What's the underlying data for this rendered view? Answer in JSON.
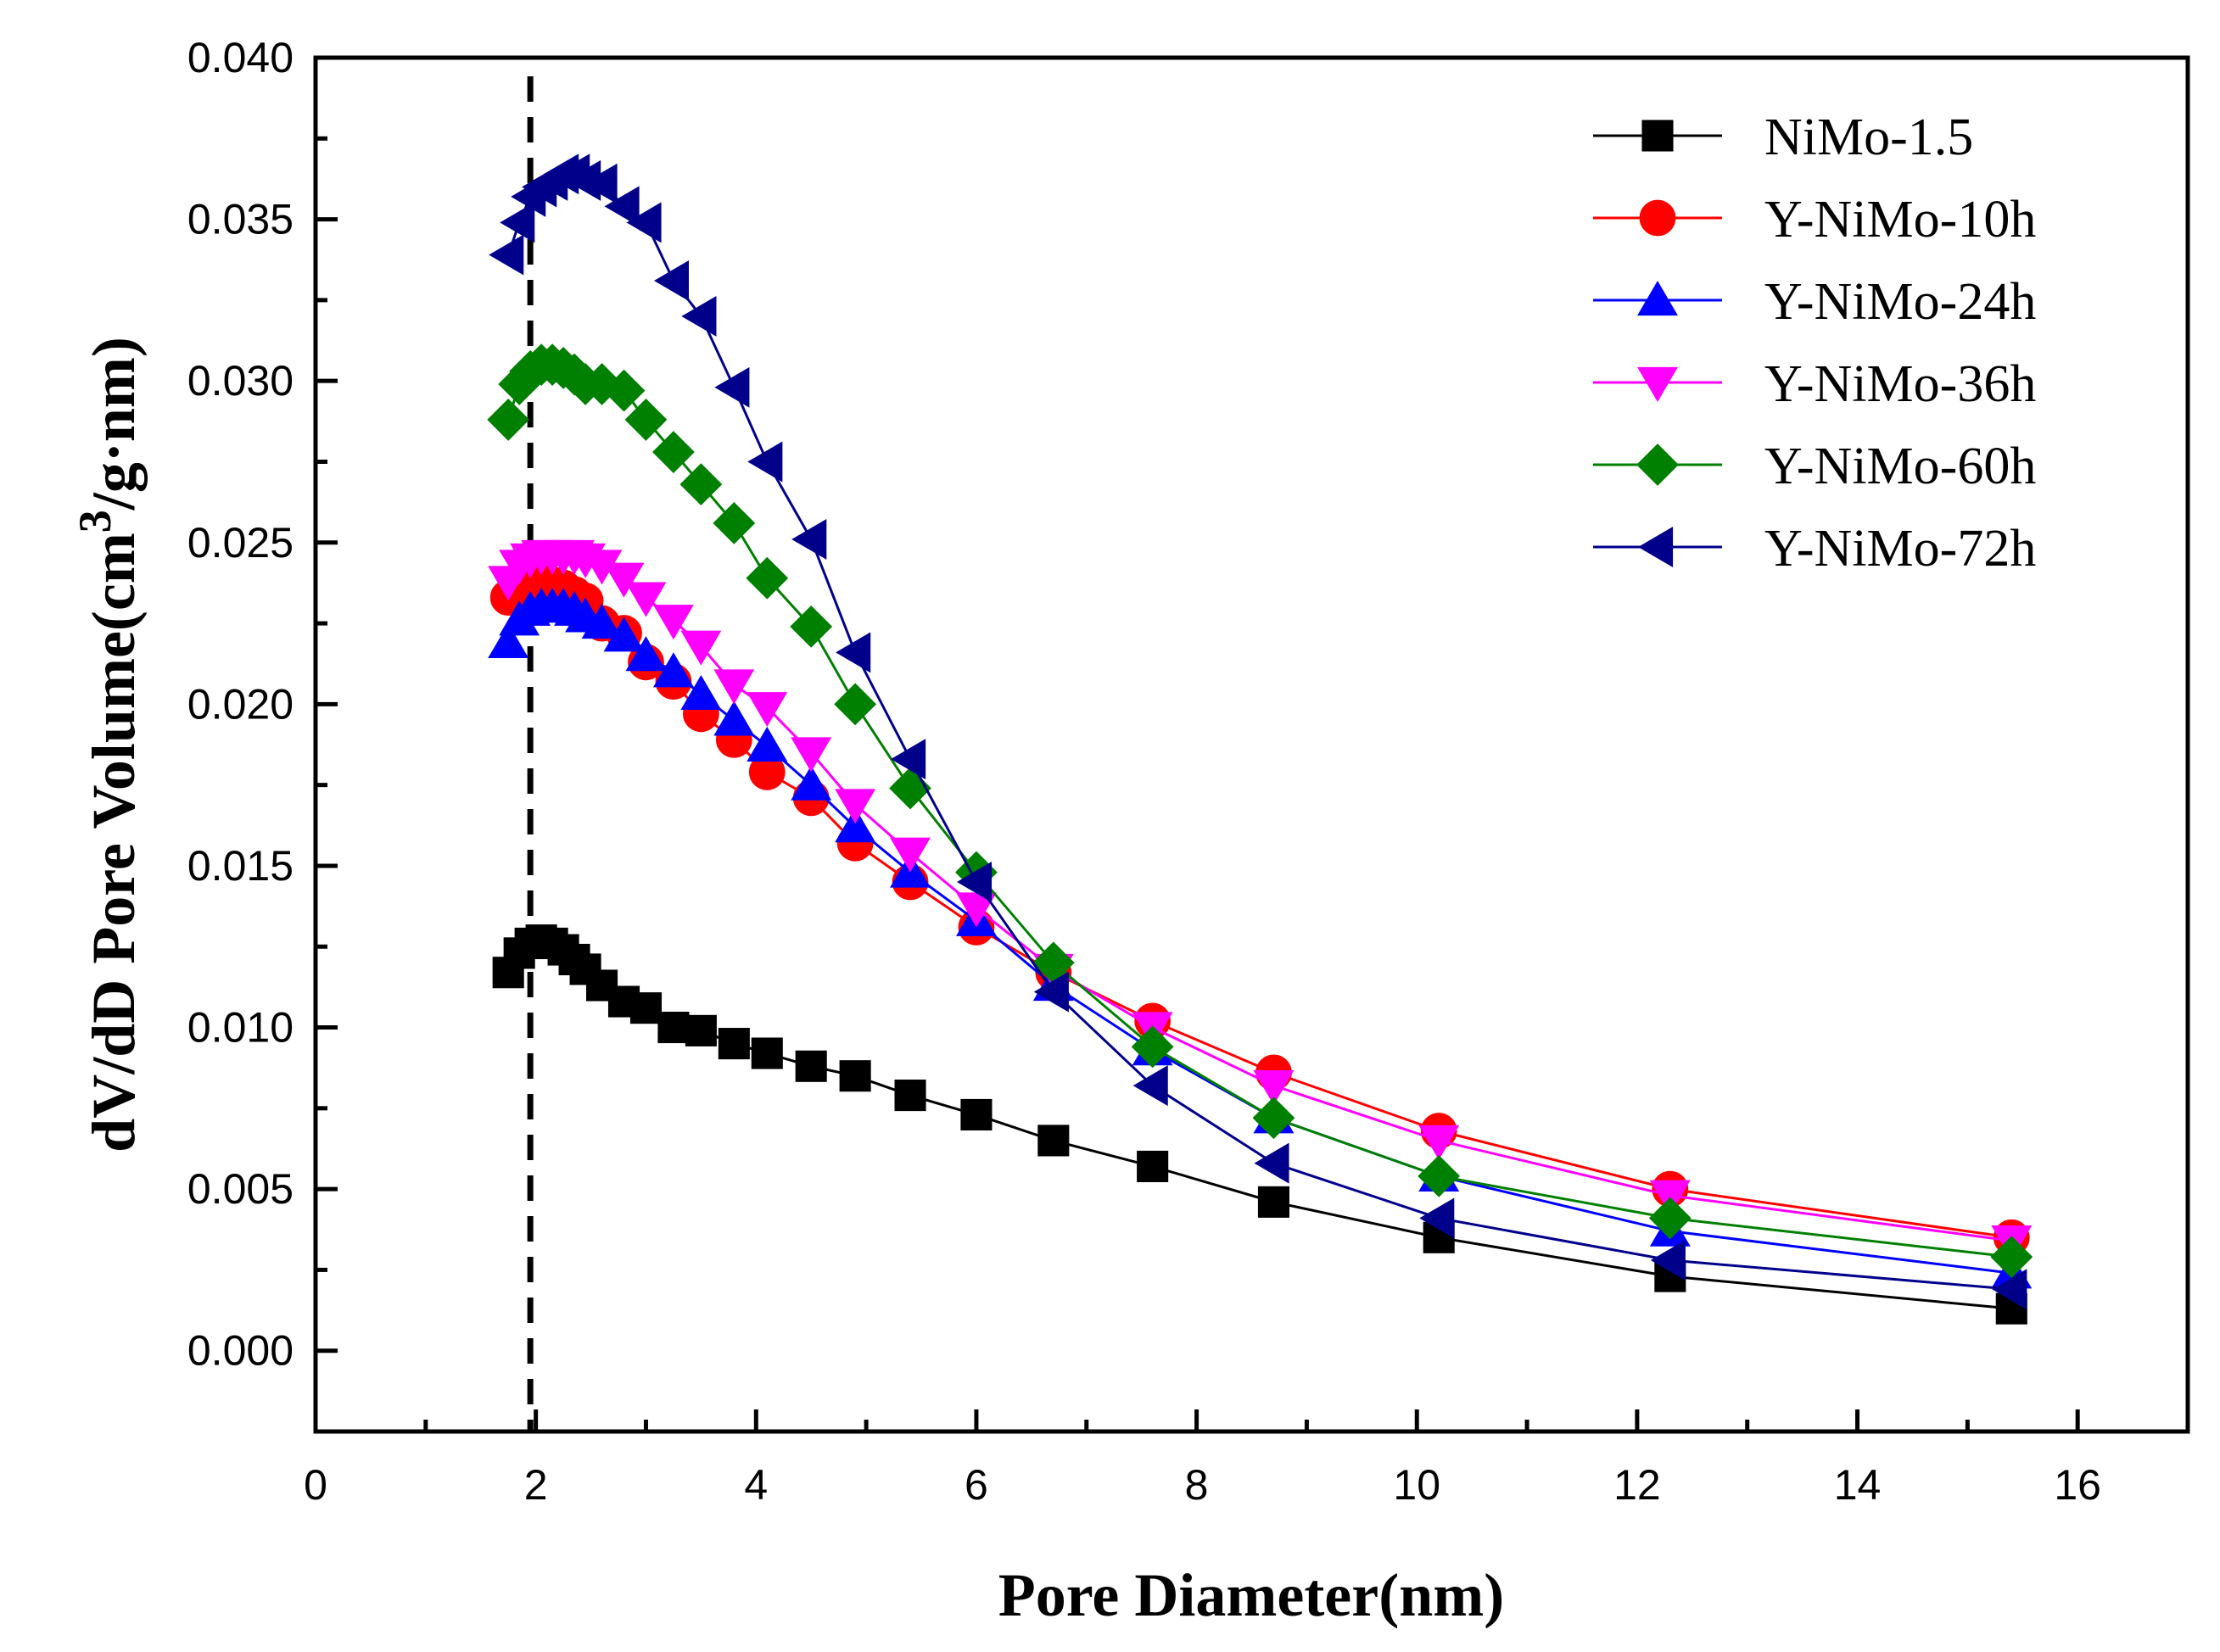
{
  "chart_data": {
    "type": "line",
    "title": "",
    "xlabel": "Pore Diameter(nm)",
    "ylabel": "dV/dD Pore Volume(cm",
    "ylabel_sup": "3",
    "ylabel_suffix": "/g·nm)",
    "xlim": [
      0,
      17
    ],
    "ylim": [
      -0.0025,
      0.04
    ],
    "x_ticks": [
      0,
      2,
      4,
      6,
      8,
      10,
      12,
      14,
      16
    ],
    "x_tick_labels": [
      "0",
      "2",
      "4",
      "6",
      "8",
      "10",
      "12",
      "14",
      "16"
    ],
    "y_ticks": [
      0.0,
      0.005,
      0.01,
      0.015,
      0.02,
      0.025,
      0.03,
      0.035,
      0.04
    ],
    "y_tick_labels": [
      "0.000",
      "0.005",
      "0.010",
      "0.015",
      "0.020",
      "0.025",
      "0.030",
      "0.035",
      "0.040"
    ],
    "reference_line": {
      "x": 1.95,
      "style": "dashed"
    },
    "legend_position": "top-right",
    "x": [
      1.75,
      1.85,
      1.95,
      2.05,
      2.15,
      2.25,
      2.35,
      2.45,
      2.6,
      2.8,
      3.0,
      3.25,
      3.5,
      3.8,
      4.1,
      4.5,
      4.9,
      5.4,
      6.0,
      6.7,
      7.6,
      8.7,
      10.2,
      12.3,
      15.4
    ],
    "series": [
      {
        "name": "NiMo-1.5",
        "color": "#000000",
        "marker": "square",
        "values": [
          0.0117,
          0.0123,
          0.0126,
          0.0127,
          0.0126,
          0.0124,
          0.0121,
          0.0118,
          0.0113,
          0.0108,
          0.0106,
          0.01,
          0.0099,
          0.0095,
          0.0092,
          0.0088,
          0.0085,
          0.0079,
          0.0073,
          0.0065,
          0.0057,
          0.0046,
          0.0035,
          0.0023,
          0.0013
        ]
      },
      {
        "name": "Y-NiMo-10h",
        "color": "#ff0000",
        "marker": "circle",
        "values": [
          0.0233,
          0.0236,
          0.0238,
          0.0238,
          0.0237,
          0.0236,
          0.0234,
          0.0232,
          0.0225,
          0.0222,
          0.0213,
          0.0207,
          0.0197,
          0.0189,
          0.0179,
          0.0171,
          0.0157,
          0.0145,
          0.0131,
          0.0117,
          0.0102,
          0.0086,
          0.0068,
          0.005,
          0.0035
        ]
      },
      {
        "name": "Y-NiMo-24h",
        "color": "#0000ff",
        "marker": "triangle-up",
        "values": [
          0.0219,
          0.0226,
          0.0229,
          0.023,
          0.023,
          0.023,
          0.0229,
          0.0227,
          0.0225,
          0.0221,
          0.0215,
          0.021,
          0.0203,
          0.0195,
          0.0187,
          0.0175,
          0.0162,
          0.0148,
          0.0133,
          0.0113,
          0.0093,
          0.0072,
          0.0054,
          0.0037,
          0.0024
        ]
      },
      {
        "name": "Y-NiMo-36h",
        "color": "#ff00ff",
        "marker": "triangle-down",
        "values": [
          0.0238,
          0.0243,
          0.0245,
          0.0246,
          0.0246,
          0.0246,
          0.0246,
          0.0245,
          0.0243,
          0.0239,
          0.0233,
          0.0226,
          0.0218,
          0.0206,
          0.0199,
          0.0185,
          0.0169,
          0.0154,
          0.0137,
          0.0118,
          0.01,
          0.0082,
          0.0065,
          0.0048,
          0.0034
        ]
      },
      {
        "name": "Y-NiMo-60h",
        "color": "#008000",
        "marker": "diamond",
        "values": [
          0.0288,
          0.0299,
          0.0303,
          0.0305,
          0.0305,
          0.0304,
          0.0302,
          0.0299,
          0.0299,
          0.0297,
          0.0288,
          0.0278,
          0.0268,
          0.0256,
          0.0239,
          0.0224,
          0.02,
          0.0174,
          0.0148,
          0.012,
          0.0094,
          0.0072,
          0.0054,
          0.0041,
          0.0029
        ]
      },
      {
        "name": "Y-NiMo-72h",
        "color": "#00008b",
        "marker": "triangle-left",
        "values": [
          0.0339,
          0.0349,
          0.0357,
          0.036,
          0.0362,
          0.0364,
          0.0364,
          0.0362,
          0.0361,
          0.0354,
          0.0349,
          0.0331,
          0.032,
          0.0298,
          0.0275,
          0.0251,
          0.0216,
          0.0183,
          0.0145,
          0.0111,
          0.0082,
          0.0058,
          0.0041,
          0.0028,
          0.0019
        ]
      }
    ]
  }
}
